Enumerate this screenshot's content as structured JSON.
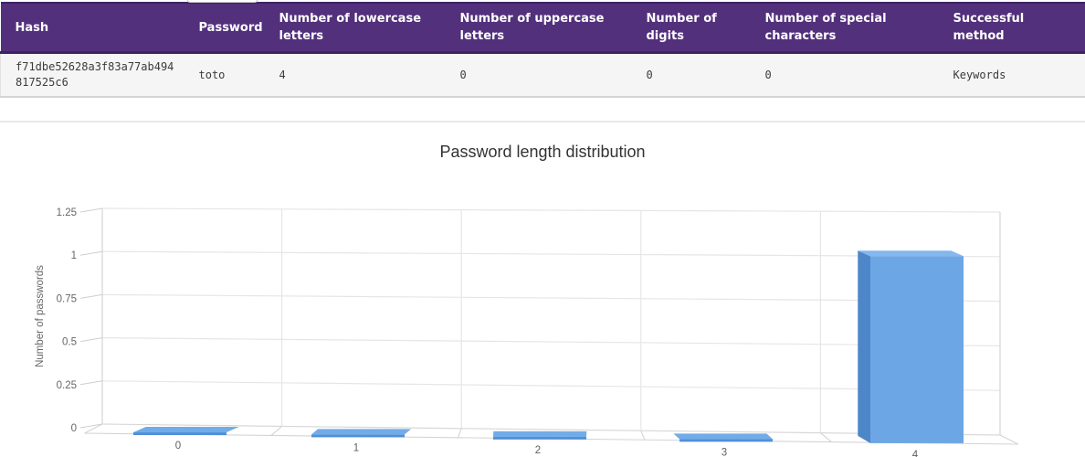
{
  "table": {
    "headers": [
      "Hash",
      "Password",
      "Number of lowercase letters",
      "Number of uppercase letters",
      "Number of digits",
      "Number of special characters",
      "Successful method"
    ],
    "rows": [
      [
        "f71dbe52628a3f83a77ab494817525c6",
        "toto",
        "4",
        "0",
        "0",
        "0",
        "Keywords"
      ]
    ]
  },
  "chart_data": {
    "type": "bar",
    "variant": "3d-column",
    "title": "Password length distribution",
    "categories": [
      "0",
      "1",
      "2",
      "3",
      "4"
    ],
    "values": [
      0,
      0,
      0,
      0,
      1
    ],
    "xlabel": "",
    "ylabel": "Number of passwords",
    "ylim": [
      0,
      1.25
    ],
    "yticks": [
      "0",
      "0.25",
      "0.5",
      "0.75",
      "1",
      "1.25"
    ],
    "grid": true,
    "legend": false,
    "colors": {
      "bar_front": "#6ca6e5",
      "bar_top": "#83b7ee",
      "bar_side": "#4e87c9",
      "flat_top": "#72ace8",
      "flat_front": "#4f90da",
      "grid": "#e6e6e6",
      "frame": "#d4d4d4",
      "axis_text": "#666666"
    }
  },
  "theme": {
    "header_bg": "#52307c",
    "header_border": "#3e2363",
    "row_bg": "#f5f5f5",
    "divider": "#e8e8e8",
    "title_color": "#333333"
  }
}
